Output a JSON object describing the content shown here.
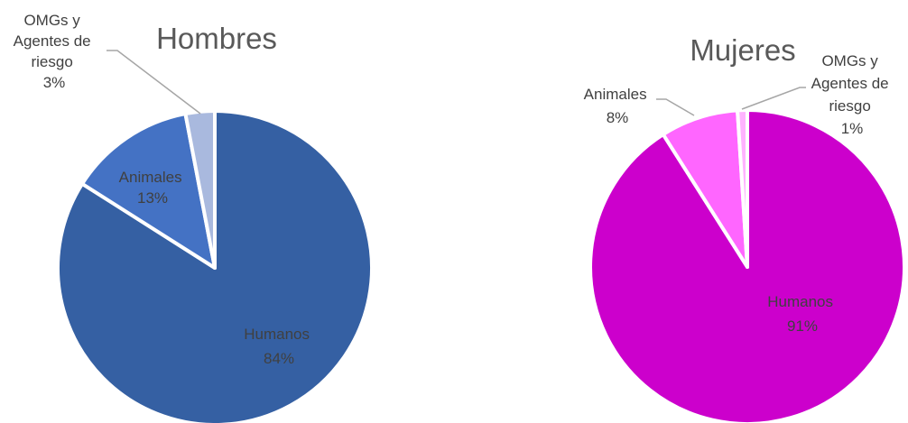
{
  "chart_data": [
    {
      "type": "pie",
      "title": "Hombres",
      "slices": [
        {
          "name": "Humanos",
          "value": 84,
          "label": [
            "Humanos",
            "84%"
          ],
          "color": "#3560A3"
        },
        {
          "name": "Animales",
          "value": 13,
          "label": [
            "Animales",
            "13%"
          ],
          "color": "#4472C4"
        },
        {
          "name": "OMGs y Agentes de riesgo",
          "value": 3,
          "label": [
            "OMGs y",
            "Agentes de",
            "riesgo",
            "3%"
          ],
          "color": "#A9B9DE"
        }
      ]
    },
    {
      "type": "pie",
      "title": "Mujeres",
      "slices": [
        {
          "name": "Humanos",
          "value": 91,
          "label": [
            "Humanos",
            "91%"
          ],
          "color": "#CC00CC"
        },
        {
          "name": "Animales",
          "value": 8,
          "label": [
            "Animales",
            "8%"
          ],
          "color": "#FF66FF"
        },
        {
          "name": "OMGs y Agentes de riesgo",
          "value": 1,
          "label": [
            "OMGs y",
            "Agentes de",
            "riesgo",
            "1%"
          ],
          "color": "#FFB3FF"
        }
      ]
    }
  ]
}
